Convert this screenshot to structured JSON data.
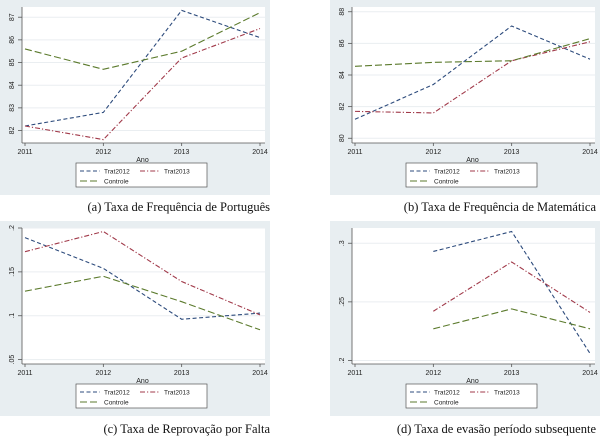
{
  "colors": {
    "panel_bg": "#e8eef1",
    "plot_bg": "#ffffff",
    "grid": "#eaeef1",
    "axis": "#555555",
    "Trat2012": "#2d4b7c",
    "Trat2013": "#a13a4a",
    "Controle": "#5b7a2c"
  },
  "chart_data": [
    {
      "id": "a",
      "type": "line",
      "caption": "(a) Taxa de Frequência de Português",
      "xlabel": "Ano",
      "ylabel": "",
      "x": [
        2011,
        2012,
        2013,
        2014
      ],
      "x_ticks": [
        "2011",
        "2012",
        "2013",
        "2014"
      ],
      "y_ticks": [
        82,
        83,
        84,
        85,
        86,
        87
      ],
      "y_tick_labels": [
        "82",
        "83",
        "84",
        "85",
        "86",
        "87"
      ],
      "ylim": [
        81.45,
        87.45
      ],
      "grid": true,
      "legend": "bottom",
      "series": [
        {
          "name": "Trat2012",
          "values": [
            82.2,
            82.8,
            87.3,
            86.1
          ]
        },
        {
          "name": "Trat2013",
          "values": [
            82.2,
            81.6,
            85.2,
            86.5
          ]
        },
        {
          "name": "Controle",
          "values": [
            85.6,
            84.7,
            85.5,
            87.2
          ]
        }
      ]
    },
    {
      "id": "b",
      "type": "line",
      "caption": "(b) Taxa de Frequência de Matemática",
      "xlabel": "Ano",
      "ylabel": "",
      "x": [
        2011,
        2012,
        2013,
        2014
      ],
      "x_ticks": [
        "2011",
        "2012",
        "2013",
        "2014"
      ],
      "y_ticks": [
        80,
        82,
        84,
        86,
        88
      ],
      "y_tick_labels": [
        "80",
        "82",
        "84",
        "86",
        "88"
      ],
      "ylim": [
        79.7,
        88.3
      ],
      "grid": true,
      "legend": "bottom",
      "series": [
        {
          "name": "Trat2012",
          "values": [
            81.2,
            83.4,
            87.1,
            85.0
          ]
        },
        {
          "name": "Trat2013",
          "values": [
            81.7,
            81.6,
            84.9,
            86.1
          ]
        },
        {
          "name": "Controle",
          "values": [
            84.55,
            84.8,
            84.9,
            86.3
          ]
        }
      ]
    },
    {
      "id": "c",
      "type": "line",
      "caption": "(c) Taxa de Reprovação por Falta",
      "xlabel": "Ano",
      "ylabel": "",
      "x": [
        2011,
        2012,
        2013,
        2014
      ],
      "x_ticks": [
        "2011",
        "2012",
        "2013",
        "2014"
      ],
      "y_ticks": [
        0.05,
        0.1,
        0.15,
        0.2
      ],
      "y_tick_labels": [
        ".05",
        ".1",
        ".15",
        ".2"
      ],
      "ylim": [
        0.045,
        0.2
      ],
      "grid": true,
      "legend": "bottom",
      "series": [
        {
          "name": "Trat2012",
          "values": [
            0.189,
            0.154,
            0.096,
            0.103
          ]
        },
        {
          "name": "Trat2013",
          "values": [
            0.173,
            0.196,
            0.139,
            0.101
          ]
        },
        {
          "name": "Controle",
          "values": [
            0.128,
            0.145,
            0.116,
            0.084
          ]
        }
      ]
    },
    {
      "id": "d",
      "type": "line",
      "caption": "(d) Taxa de evasão período subsequente",
      "xlabel": "Ano",
      "ylabel": "",
      "x": [
        2011,
        2012,
        2013,
        2014
      ],
      "x_ticks": [
        "2011",
        "2012",
        "2013",
        "2014"
      ],
      "y_ticks": [
        0.2,
        0.25,
        0.3
      ],
      "y_tick_labels": [
        ".2",
        ".25",
        ".3"
      ],
      "ylim": [
        0.197,
        0.313
      ],
      "grid": true,
      "legend": "bottom",
      "series": [
        {
          "name": "Trat2012",
          "values": [
            null,
            0.293,
            0.31,
            0.206
          ]
        },
        {
          "name": "Trat2013",
          "values": [
            null,
            0.242,
            0.284,
            0.241
          ]
        },
        {
          "name": "Controle",
          "values": [
            null,
            0.227,
            0.244,
            0.227
          ]
        }
      ]
    }
  ],
  "legend": {
    "items": [
      "Trat2012",
      "Trat2013",
      "Controle"
    ]
  }
}
